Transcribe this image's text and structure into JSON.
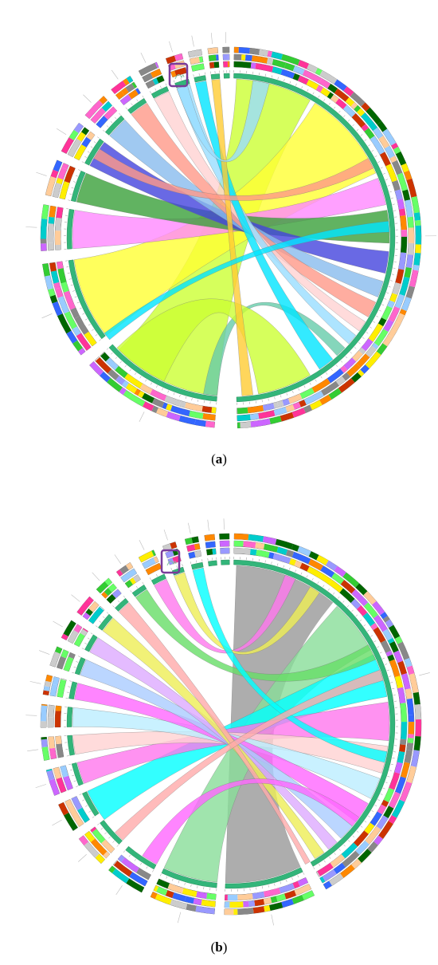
{
  "figure": {
    "panels": [
      {
        "id": "a",
        "caption_open": "(",
        "caption_label": "a",
        "caption_close": ")",
        "highlight_color": "#7a3b9a",
        "block_palette": [
          "#33cc33",
          "#ff8800",
          "#ff3399",
          "#3366ff",
          "#ffee00",
          "#99ccff",
          "#cc66ff",
          "#888888",
          "#00cccc",
          "#cc3300",
          "#66ff66",
          "#ff66cc",
          "#9999ff",
          "#ffcc99",
          "#006600",
          "#cccccc"
        ],
        "ribbon_colors": [
          "#ccff33",
          "#ffff33",
          "#ff88ff",
          "#3aa03a",
          "#4444dd",
          "#88bbee",
          "#ff9988",
          "#ffd2d2",
          "#99ddff",
          "#66ccaa",
          "#00e5ff",
          "#ffcc33"
        ]
      },
      {
        "id": "b",
        "caption_open": "(",
        "caption_label": "b",
        "caption_close": ")",
        "highlight_color": "#7a3b9a",
        "block_palette": [
          "#33cc33",
          "#ff8800",
          "#ff3399",
          "#3366ff",
          "#ffee00",
          "#99ccff",
          "#cc66ff",
          "#888888",
          "#00cccc",
          "#cc3300",
          "#66ff66",
          "#ff66cc",
          "#9999ff",
          "#ffcc99",
          "#006600",
          "#cccccc"
        ],
        "ribbon_colors": [
          "#999999",
          "#88dd99",
          "#00ffff",
          "#ff77ee",
          "#ffd2d2",
          "#bbeeff",
          "#ff66ff",
          "#aaccff",
          "#ddaaff",
          "#eeee55",
          "#ffaaaa",
          "#66dd66"
        ]
      }
    ]
  }
}
